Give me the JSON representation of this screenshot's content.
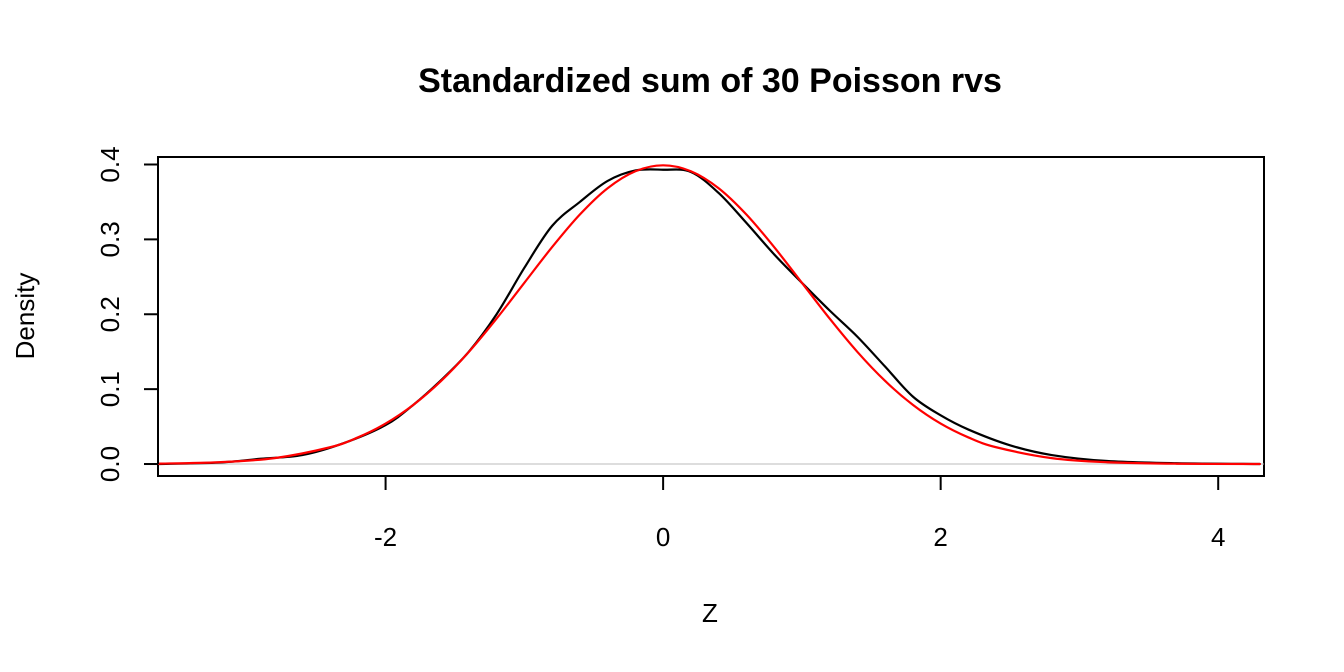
{
  "chart_data": {
    "type": "line",
    "title": "Standardized sum of 30 Poisson rvs",
    "xlabel": "Z",
    "ylabel": "Density",
    "xlim": [
      -3.64,
      4.33
    ],
    "ylim": [
      -0.016,
      0.41
    ],
    "x_ticks": [
      -2,
      0,
      2,
      4
    ],
    "x_tick_labels": [
      "-2",
      "0",
      "2",
      "4"
    ],
    "y_ticks": [
      0.0,
      0.1,
      0.2,
      0.3,
      0.4
    ],
    "y_tick_labels": [
      "0.0",
      "0.1",
      "0.2",
      "0.3",
      "0.4"
    ],
    "baseline_y": 0,
    "colors": {
      "kde": "#000000",
      "normal": "#ff0000",
      "baseline": "#bbbbbb"
    },
    "series": [
      {
        "color": "#000000",
        "x": [
          -3.64,
          -3.2,
          -2.9,
          -2.6,
          -2.3,
          -2.0,
          -1.8,
          -1.6,
          -1.4,
          -1.2,
          -1.0,
          -0.8,
          -0.6,
          -0.4,
          -0.2,
          0.0,
          0.2,
          0.4,
          0.6,
          0.8,
          1.0,
          1.2,
          1.4,
          1.6,
          1.8,
          2.0,
          2.2,
          2.5,
          2.8,
          3.2,
          3.7,
          4.3
        ],
        "y": [
          0.0,
          0.002,
          0.007,
          0.012,
          0.028,
          0.052,
          0.079,
          0.112,
          0.15,
          0.2,
          0.262,
          0.318,
          0.35,
          0.378,
          0.392,
          0.393,
          0.39,
          0.362,
          0.322,
          0.28,
          0.242,
          0.205,
          0.17,
          0.13,
          0.09,
          0.065,
          0.046,
          0.025,
          0.012,
          0.004,
          0.001,
          0.0
        ]
      },
      {
        "color": "#ff0000",
        "x": [
          -3.64,
          -3.2,
          -2.8,
          -2.4,
          -2.2,
          -2.0,
          -1.8,
          -1.6,
          -1.4,
          -1.2,
          -1.0,
          -0.8,
          -0.6,
          -0.4,
          -0.2,
          0.0,
          0.2,
          0.4,
          0.6,
          0.8,
          1.0,
          1.2,
          1.4,
          1.6,
          1.8,
          2.0,
          2.2,
          2.4,
          2.8,
          3.2,
          3.7,
          4.3
        ],
        "y": [
          0.0005,
          0.0024,
          0.0079,
          0.0224,
          0.0355,
          0.054,
          0.079,
          0.1109,
          0.1497,
          0.1942,
          0.242,
          0.2897,
          0.3332,
          0.3683,
          0.391,
          0.3989,
          0.391,
          0.3683,
          0.3332,
          0.2897,
          0.242,
          0.1942,
          0.1497,
          0.1109,
          0.079,
          0.054,
          0.0355,
          0.0224,
          0.0079,
          0.0024,
          0.0004,
          0.0
        ]
      }
    ]
  }
}
